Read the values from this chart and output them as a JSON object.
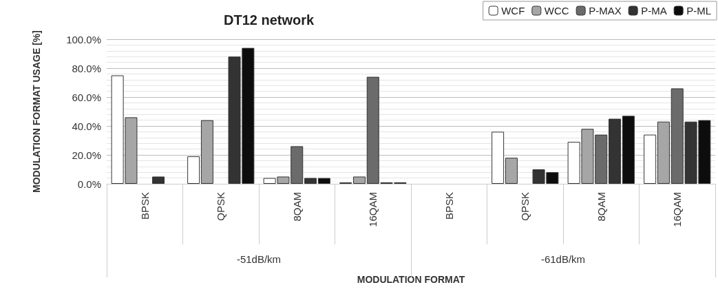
{
  "chart_data": {
    "type": "bar",
    "title": "DT12 network",
    "xlabel": "MODULATION FORMAT",
    "ylabel": "MODULATION FORMAT USAGE [%]",
    "categories": [
      "BPSK",
      "QPSK",
      "8QAM",
      "16QAM",
      "BPSK",
      "QPSK",
      "8QAM",
      "16QAM"
    ],
    "annotations": [
      "-51dB/km",
      "-61dB/km"
    ],
    "series": [
      {
        "name": "WCF",
        "color": "#ffffff",
        "values": [
          75,
          19,
          4,
          1,
          0,
          36,
          29,
          34
        ]
      },
      {
        "name": "WCC",
        "color": "#a6a6a6",
        "values": [
          46,
          44,
          5,
          5,
          0,
          18,
          38,
          43
        ]
      },
      {
        "name": "P-MAX",
        "color": "#6b6b6b",
        "values": [
          0,
          0,
          26,
          74,
          0,
          0,
          34,
          66
        ]
      },
      {
        "name": "P-MA",
        "color": "#333333",
        "values": [
          5,
          88,
          4,
          1,
          0,
          10,
          45,
          43
        ]
      },
      {
        "name": "P-ML",
        "color": "#0d0d0d",
        "values": [
          0,
          94,
          4,
          1,
          0,
          8,
          47,
          44
        ]
      }
    ],
    "ylim": [
      0,
      100
    ],
    "yticks": [
      {
        "value": 0,
        "label": "0.0%"
      },
      {
        "value": 20,
        "label": "20.0%"
      },
      {
        "value": 40,
        "label": "40.0%"
      },
      {
        "value": 60,
        "label": "60.0%"
      },
      {
        "value": 80,
        "label": "80.0%"
      },
      {
        "value": 100,
        "label": "100.0%"
      }
    ],
    "grid": "y",
    "legend": "top right"
  }
}
